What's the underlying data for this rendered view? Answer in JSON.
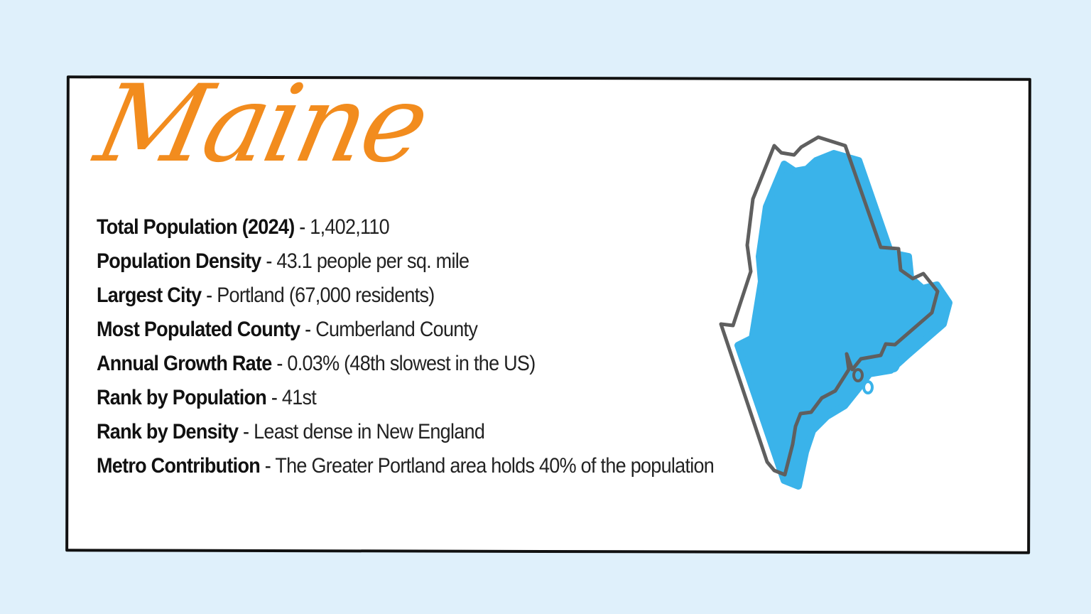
{
  "title": "Maine",
  "facts": [
    {
      "label": "Total Population (2024)",
      "value": "1,402,110"
    },
    {
      "label": "Population Density",
      "value": "43.1 people per sq. mile"
    },
    {
      "label": "Largest City",
      "value": "Portland (67,000 residents)"
    },
    {
      "label": "Most Populated County",
      "value": "Cumberland County"
    },
    {
      "label": "Annual Growth Rate",
      "value": "0.03% (48th slowest in the US)"
    },
    {
      "label": "Rank by Population",
      "value": "41st"
    },
    {
      "label": "Rank by Density",
      "value": "Least dense in New England"
    },
    {
      "label": "Metro Contribution",
      "value": "The Greater Portland area holds 40% of the population"
    }
  ],
  "colors": {
    "background": "#dff0fb",
    "title": "#f28c1e",
    "map_fill": "#3ab3ea",
    "map_outline": "#5f5f5f"
  },
  "map_icon": "maine-state-map-icon"
}
